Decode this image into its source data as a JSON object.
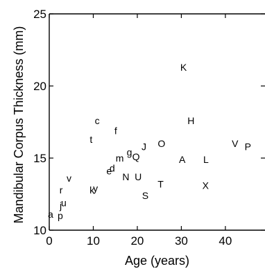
{
  "chart_data": {
    "type": "scatter",
    "title": "",
    "xlabel": "Age (years)",
    "ylabel": "Mandibular Corpus Thickness (mm)",
    "xlim": [
      0,
      49
    ],
    "ylim": [
      10,
      25
    ],
    "x_ticks": [
      0,
      10,
      20,
      30,
      40
    ],
    "y_ticks": [
      10,
      15,
      20,
      25
    ],
    "grid": false,
    "points": [
      {
        "label": "a",
        "x": 0.3,
        "y": 11.1
      },
      {
        "label": "p",
        "x": 2.5,
        "y": 11.0
      },
      {
        "label": "j",
        "x": 2.6,
        "y": 11.7
      },
      {
        "label": "u",
        "x": 3.3,
        "y": 11.9
      },
      {
        "label": "r",
        "x": 2.7,
        "y": 12.8
      },
      {
        "label": "v",
        "x": 4.5,
        "y": 13.6
      },
      {
        "label": "k",
        "x": 9.7,
        "y": 12.8
      },
      {
        "label": "y",
        "x": 10.5,
        "y": 12.9
      },
      {
        "label": "t",
        "x": 9.5,
        "y": 16.3
      },
      {
        "label": "c",
        "x": 10.9,
        "y": 17.6
      },
      {
        "label": "e",
        "x": 13.6,
        "y": 14.1
      },
      {
        "label": "d",
        "x": 14.3,
        "y": 14.3
      },
      {
        "label": "m",
        "x": 16.0,
        "y": 15.0
      },
      {
        "label": "f",
        "x": 15.1,
        "y": 16.9
      },
      {
        "label": "g",
        "x": 18.2,
        "y": 15.4
      },
      {
        "label": "Q",
        "x": 19.7,
        "y": 15.1
      },
      {
        "label": "J",
        "x": 21.5,
        "y": 15.8
      },
      {
        "label": "N",
        "x": 17.4,
        "y": 13.7
      },
      {
        "label": "U",
        "x": 20.2,
        "y": 13.7
      },
      {
        "label": "S",
        "x": 21.8,
        "y": 12.4
      },
      {
        "label": "O",
        "x": 25.5,
        "y": 16.0
      },
      {
        "label": "T",
        "x": 25.3,
        "y": 13.2
      },
      {
        "label": "K",
        "x": 30.5,
        "y": 21.3
      },
      {
        "label": "H",
        "x": 32.2,
        "y": 17.6
      },
      {
        "label": "A",
        "x": 30.2,
        "y": 14.9
      },
      {
        "label": "L",
        "x": 35.6,
        "y": 14.9
      },
      {
        "label": "X",
        "x": 35.5,
        "y": 13.1
      },
      {
        "label": "V",
        "x": 42.2,
        "y": 16.0
      },
      {
        "label": "P",
        "x": 45.1,
        "y": 15.8
      }
    ]
  }
}
